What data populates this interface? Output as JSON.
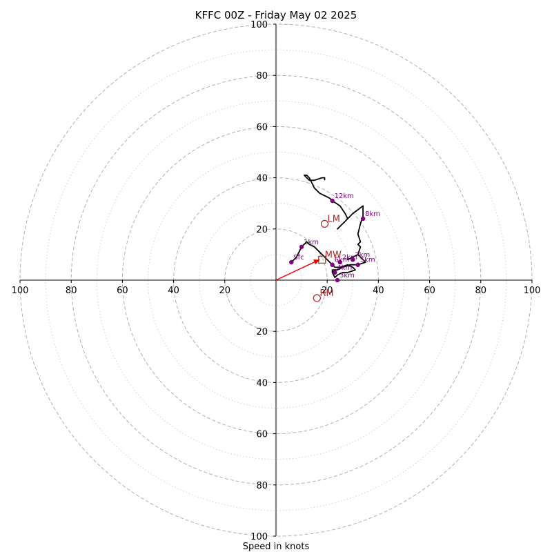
{
  "chart_data": {
    "type": "hodograph",
    "title": "KFFC 00Z - Friday May 02 2025",
    "xlabel": "Speed in knots",
    "units": "knots",
    "rings_major": [
      20,
      40,
      60,
      80,
      100
    ],
    "rings_minor": [
      10,
      30,
      50,
      70,
      90
    ],
    "x_tick_labels": [
      "100",
      "80",
      "60",
      "40",
      "20",
      "20",
      "40",
      "60",
      "80",
      "100"
    ],
    "x_tick_values": [
      -100,
      -80,
      -60,
      -40,
      -20,
      20,
      40,
      60,
      80,
      100
    ],
    "y_tick_labels": [
      "100",
      "80",
      "60",
      "40",
      "20",
      "20",
      "40",
      "60",
      "80",
      "100"
    ],
    "y_tick_values": [
      100,
      80,
      60,
      40,
      20,
      -20,
      -40,
      -60,
      -80,
      -100
    ],
    "trace": [
      [
        6,
        7
      ],
      [
        8,
        9
      ],
      [
        10,
        13
      ],
      [
        11,
        14
      ],
      [
        12,
        15
      ],
      [
        13,
        14
      ],
      [
        15,
        13
      ],
      [
        17,
        11
      ],
      [
        19,
        9
      ],
      [
        21,
        7
      ],
      [
        22,
        6
      ],
      [
        23,
        5
      ],
      [
        25,
        5
      ],
      [
        28,
        6
      ],
      [
        30,
        5
      ],
      [
        31,
        4
      ],
      [
        28,
        3
      ],
      [
        26,
        3
      ],
      [
        24,
        2
      ],
      [
        23,
        1
      ],
      [
        22,
        3
      ],
      [
        22,
        4
      ],
      [
        24,
        4
      ],
      [
        26,
        5
      ],
      [
        29,
        6
      ],
      [
        32,
        6
      ],
      [
        35,
        7
      ],
      [
        33,
        9
      ],
      [
        32,
        10
      ],
      [
        30,
        9
      ],
      [
        28,
        8
      ],
      [
        30,
        9
      ],
      [
        32,
        10
      ],
      [
        33,
        13
      ],
      [
        32,
        14
      ],
      [
        33,
        15
      ],
      [
        32,
        18
      ],
      [
        33,
        22
      ],
      [
        34,
        25
      ],
      [
        34,
        27
      ],
      [
        34,
        29
      ],
      [
        30,
        26
      ],
      [
        27,
        23
      ],
      [
        24,
        20
      ],
      [
        26,
        22
      ],
      [
        28,
        24
      ],
      [
        27,
        26
      ],
      [
        25,
        29
      ],
      [
        22,
        31
      ],
      [
        21,
        32
      ],
      [
        19,
        33
      ],
      [
        17,
        34
      ],
      [
        15,
        36
      ],
      [
        14,
        38
      ],
      [
        13,
        40
      ],
      [
        12,
        41
      ],
      [
        11,
        41
      ],
      [
        12,
        40
      ],
      [
        13,
        39
      ],
      [
        15,
        39
      ],
      [
        18,
        40
      ],
      [
        19,
        40
      ],
      [
        19,
        39
      ]
    ],
    "height_points": [
      {
        "label": "Sfc",
        "u": 6,
        "v": 7
      },
      {
        "label": "1km",
        "u": 10,
        "v": 13
      },
      {
        "label": "2km",
        "u": 25,
        "v": 7
      },
      {
        "label": "3km",
        "u": 24,
        "v": 0
      },
      {
        "label": "4km",
        "u": 23,
        "v": 3
      },
      {
        "label": "5km",
        "u": 32,
        "v": 6
      },
      {
        "label": "6km",
        "u": 22,
        "v": 6
      },
      {
        "label": "7km",
        "u": 30,
        "v": 8
      },
      {
        "label": "8km",
        "u": 34,
        "v": 24
      },
      {
        "label": "12km",
        "u": 22,
        "v": 31
      }
    ],
    "motions": [
      {
        "label": "LM",
        "u": 19,
        "v": 22,
        "marker": "circle"
      },
      {
        "label": "RM",
        "u": 16,
        "v": -7,
        "marker": "circle"
      },
      {
        "label": "MW",
        "u": 18,
        "v": 8,
        "marker": "square"
      }
    ],
    "shear_vector": {
      "from": [
        0,
        0
      ],
      "to": [
        17,
        8
      ]
    },
    "colors": {
      "trace": "#000000",
      "height_points": "#800080",
      "motions": "#b22222",
      "shear_vector": "#ee0000",
      "rings": "#b0b0b0"
    }
  }
}
